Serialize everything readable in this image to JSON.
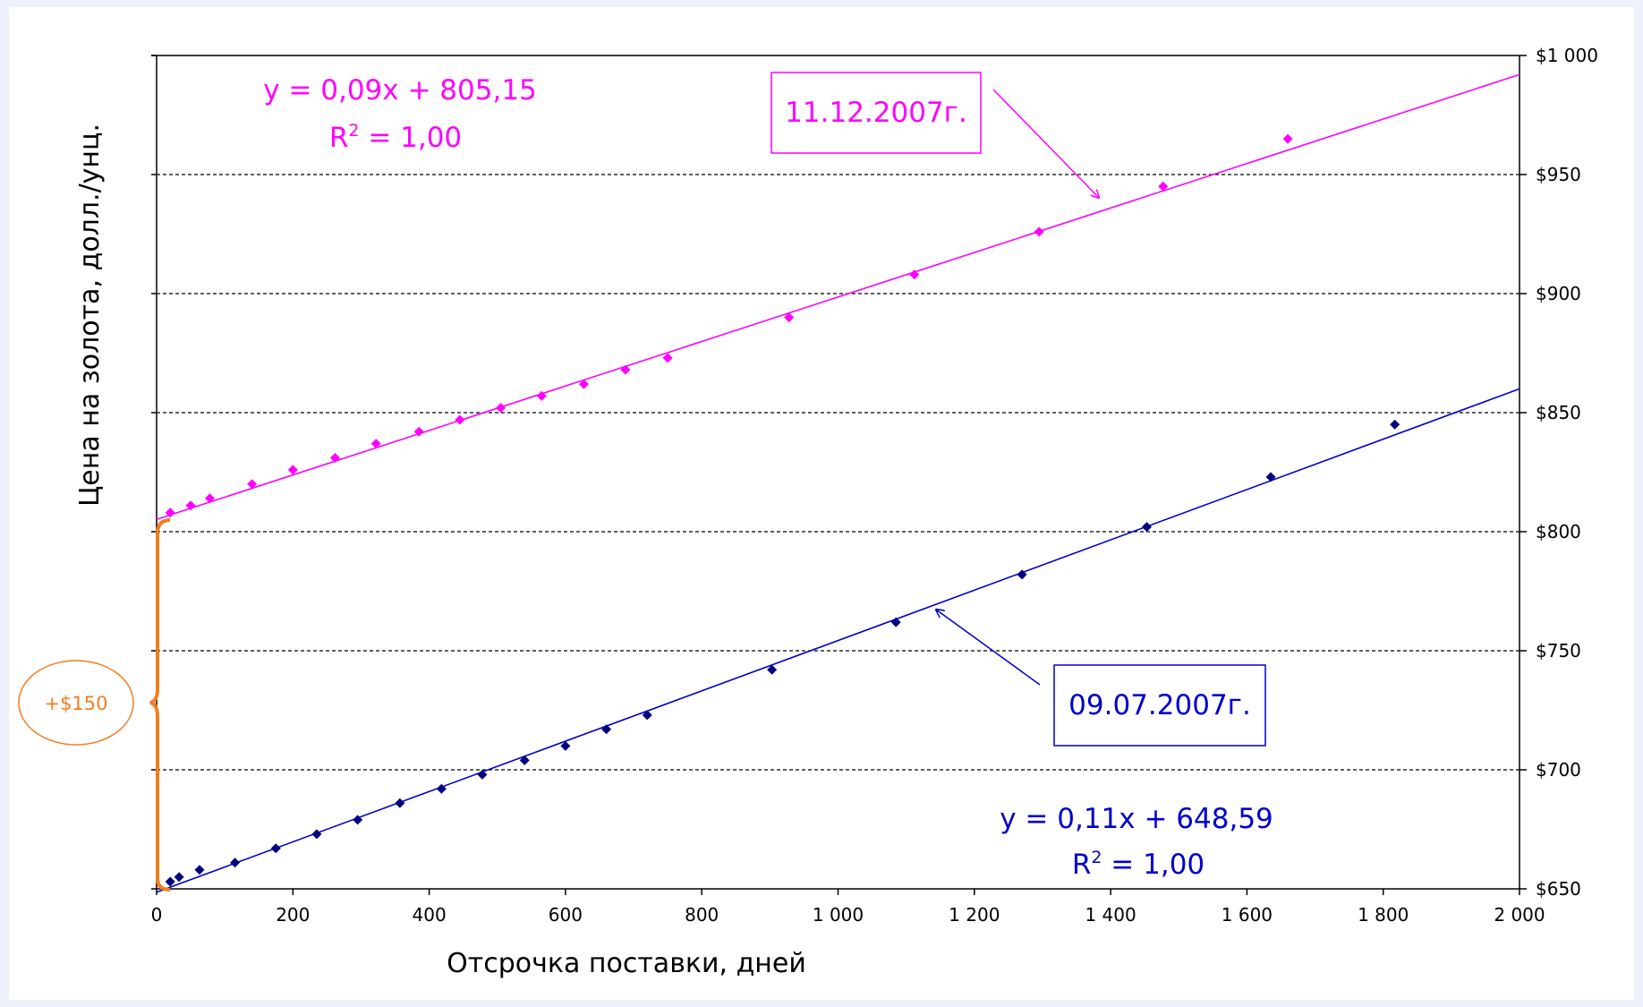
{
  "chart_data": {
    "type": "scatter",
    "xlabel": "Отсрочка поставки, дней",
    "ylabel": "Цена на золота, долл./унц.",
    "xlim": [
      0,
      2000
    ],
    "ylim": [
      650,
      1000
    ],
    "x_ticks": [
      "0",
      "200",
      "400",
      "600",
      "800",
      "1 000",
      "1 200",
      "1 400",
      "1 600",
      "1 800",
      "2 000"
    ],
    "y_ticks": [
      "$650",
      "$700",
      "$750",
      "$800",
      "$850",
      "$900",
      "$950",
      "$1 000"
    ],
    "y_axis_side": "right",
    "grid": "horizontal dashed",
    "series": [
      {
        "name": "11.12.2007г.",
        "color": "#ff00ff",
        "marker": "diamond",
        "points": [
          [
            20,
            808
          ],
          [
            50,
            811
          ],
          [
            78,
            814
          ],
          [
            140,
            820
          ],
          [
            200,
            826
          ],
          [
            262,
            831
          ],
          [
            322,
            837
          ],
          [
            385,
            842
          ],
          [
            445,
            847
          ],
          [
            505,
            852
          ],
          [
            565,
            857
          ],
          [
            627,
            862
          ],
          [
            688,
            868
          ],
          [
            750,
            873
          ],
          [
            928,
            890
          ],
          [
            1112,
            908
          ],
          [
            1295,
            926
          ],
          [
            1477,
            945
          ],
          [
            1660,
            965
          ]
        ],
        "trendline": {
          "x_range": [
            0,
            2000
          ],
          "y_range": [
            805.15,
            992
          ],
          "equation": "y = 0,09x + 805,15",
          "r2_prefix": "R",
          "r2_exp": "2",
          "r2_suffix": " = 1,00"
        }
      },
      {
        "name": "09.07.2007г.",
        "color": "#0000cc",
        "marker_color": "#000080",
        "marker": "diamond",
        "points": [
          [
            20,
            653
          ],
          [
            33,
            655
          ],
          [
            63,
            658
          ],
          [
            115,
            661
          ],
          [
            175,
            667
          ],
          [
            235,
            673
          ],
          [
            295,
            679
          ],
          [
            357,
            686
          ],
          [
            418,
            692
          ],
          [
            478,
            698
          ],
          [
            540,
            704
          ],
          [
            600,
            710
          ],
          [
            660,
            717
          ],
          [
            720,
            723
          ],
          [
            903,
            742
          ],
          [
            1085,
            762
          ],
          [
            1270,
            782
          ],
          [
            1453,
            802
          ],
          [
            1635,
            823
          ],
          [
            1817,
            845
          ]
        ],
        "trendline": {
          "x_range": [
            0,
            2000
          ],
          "y_range": [
            648.59,
            860
          ],
          "equation": "y = 0,11x + 648,59",
          "r2_prefix": "R",
          "r2_exp": "2",
          "r2_suffix": " = 1,00"
        }
      }
    ],
    "annotations": {
      "difference_label": "+$150",
      "difference_color": "#f57c20",
      "brace_y_range": [
        650,
        805
      ]
    }
  }
}
